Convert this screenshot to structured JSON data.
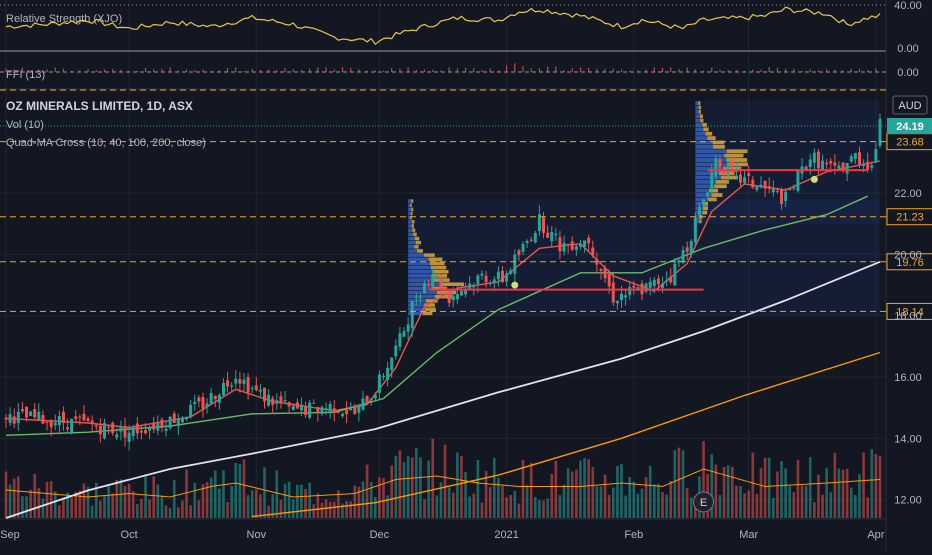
{
  "chart_data": {
    "type": "candlestick",
    "title": "OZ MINERALS LIMITED, 1D, ASX",
    "currency": "AUD",
    "legend_items": [
      "Vol (10)",
      "Quad-MA Cross (10, 40, 100, 200, close)"
    ],
    "x_ticks": [
      {
        "day": 0,
        "label": "Sep"
      },
      {
        "day": 30,
        "label": "Oct"
      },
      {
        "day": 61,
        "label": "Nov"
      },
      {
        "day": 91,
        "label": "Dec"
      },
      {
        "day": 122,
        "label": "2021"
      },
      {
        "day": 153,
        "label": "Feb"
      },
      {
        "day": 181,
        "label": "Mar"
      },
      {
        "day": 212,
        "label": "Apr"
      }
    ],
    "x_range_days": [
      0,
      213
    ],
    "y_ticks": [
      12.0,
      14.0,
      16.0,
      18.0,
      20.0,
      22.0
    ],
    "y_range": [
      11.4,
      25.3
    ],
    "price_levels": [
      {
        "value": 23.68,
        "label": "23.68"
      },
      {
        "value": 21.23,
        "label": "21.23"
      },
      {
        "value": 19.76,
        "label": "19.76"
      },
      {
        "value": 18.14,
        "label": "18.14"
      }
    ],
    "last_price": {
      "value": 24.19,
      "label": "24.19"
    },
    "support_lines": [
      {
        "from_day": 103,
        "to_day": 170,
        "value": 18.85
      },
      {
        "from_day": 171,
        "to_day": 210,
        "value": 22.75
      }
    ],
    "volume_profiles": [
      {
        "from_day": 98,
        "to_day": 213,
        "low": 18.0,
        "high": 21.8
      },
      {
        "from_day": 168,
        "to_day": 213,
        "low": 21.0,
        "high": 25.0
      }
    ],
    "ma_cross_dots": [
      {
        "day": 124,
        "value": 19.0
      },
      {
        "day": 197,
        "value": 22.45
      }
    ],
    "event_marker": {
      "day": 170,
      "label": "E"
    },
    "price_series": [
      {
        "day": 0,
        "close": 14.75
      },
      {
        "day": 10,
        "close": 14.6
      },
      {
        "day": 20,
        "close": 14.45
      },
      {
        "day": 30,
        "close": 14.2
      },
      {
        "day": 40,
        "close": 14.6
      },
      {
        "day": 48,
        "close": 15.1
      },
      {
        "day": 56,
        "close": 16.1
      },
      {
        "day": 61,
        "close": 15.5
      },
      {
        "day": 70,
        "close": 14.9
      },
      {
        "day": 80,
        "close": 15.05
      },
      {
        "day": 85,
        "close": 14.8
      },
      {
        "day": 90,
        "close": 15.6
      },
      {
        "day": 96,
        "close": 17.2
      },
      {
        "day": 100,
        "close": 18.7
      },
      {
        "day": 104,
        "close": 19.4
      },
      {
        "day": 108,
        "close": 18.6
      },
      {
        "day": 116,
        "close": 19.3
      },
      {
        "day": 121,
        "close": 19.2
      },
      {
        "day": 126,
        "close": 20.2
      },
      {
        "day": 130,
        "close": 21.1
      },
      {
        "day": 135,
        "close": 20.3
      },
      {
        "day": 142,
        "close": 20.5
      },
      {
        "day": 148,
        "close": 18.6
      },
      {
        "day": 156,
        "close": 18.9
      },
      {
        "day": 162,
        "close": 19.3
      },
      {
        "day": 166,
        "close": 20.3
      },
      {
        "day": 170,
        "close": 21.8
      },
      {
        "day": 173,
        "close": 23.1
      },
      {
        "day": 178,
        "close": 22.5
      },
      {
        "day": 184,
        "close": 22.2
      },
      {
        "day": 190,
        "close": 21.8
      },
      {
        "day": 196,
        "close": 23.2
      },
      {
        "day": 202,
        "close": 22.7
      },
      {
        "day": 207,
        "close": 23.2
      },
      {
        "day": 211,
        "close": 22.9
      },
      {
        "day": 213,
        "close": 24.19
      }
    ],
    "ma_lines": [
      {
        "name": "MA 10",
        "color": "#ef5350",
        "points": [
          [
            0,
            14.65
          ],
          [
            20,
            14.5
          ],
          [
            30,
            14.35
          ],
          [
            45,
            14.7
          ],
          [
            56,
            15.6
          ],
          [
            65,
            15.2
          ],
          [
            80,
            14.9
          ],
          [
            88,
            15.1
          ],
          [
            95,
            16.3
          ],
          [
            102,
            18.3
          ],
          [
            110,
            18.9
          ],
          [
            120,
            19.1
          ],
          [
            130,
            20.2
          ],
          [
            140,
            20.35
          ],
          [
            148,
            19.3
          ],
          [
            158,
            18.8
          ],
          [
            166,
            19.7
          ],
          [
            172,
            21.4
          ],
          [
            180,
            22.3
          ],
          [
            190,
            22.1
          ],
          [
            200,
            22.7
          ],
          [
            213,
            23.05
          ]
        ]
      },
      {
        "name": "MA 40",
        "color": "#66bb6a",
        "points": [
          [
            0,
            14.1
          ],
          [
            20,
            14.2
          ],
          [
            40,
            14.4
          ],
          [
            60,
            14.8
          ],
          [
            80,
            14.85
          ],
          [
            92,
            15.3
          ],
          [
            105,
            16.8
          ],
          [
            120,
            18.2
          ],
          [
            140,
            19.4
          ],
          [
            155,
            19.4
          ],
          [
            170,
            20.2
          ],
          [
            185,
            20.8
          ],
          [
            200,
            21.3
          ],
          [
            210,
            21.9
          ]
        ]
      },
      {
        "name": "MA 100",
        "color": "#e0e3eb",
        "points": [
          [
            0,
            11.4
          ],
          [
            20,
            12.3
          ],
          [
            40,
            13.0
          ],
          [
            60,
            13.5
          ],
          [
            90,
            14.3
          ],
          [
            120,
            15.5
          ],
          [
            150,
            16.6
          ],
          [
            170,
            17.5
          ],
          [
            190,
            18.5
          ],
          [
            213,
            19.76
          ]
        ]
      },
      {
        "name": "MA 200",
        "color": "#ff9800",
        "points": [
          [
            60,
            11.45
          ],
          [
            90,
            11.9
          ],
          [
            120,
            12.8
          ],
          [
            150,
            14.0
          ],
          [
            180,
            15.4
          ],
          [
            213,
            16.8
          ]
        ]
      }
    ],
    "volume_series": [
      {
        "day": 0,
        "volume": 0.4
      },
      {
        "day": 10,
        "volume": 0.35
      },
      {
        "day": 20,
        "volume": 0.3
      },
      {
        "day": 30,
        "volume": 0.35
      },
      {
        "day": 40,
        "volume": 0.3
      },
      {
        "day": 50,
        "volume": 0.45
      },
      {
        "day": 56,
        "volume": 0.5
      },
      {
        "day": 70,
        "volume": 0.3
      },
      {
        "day": 85,
        "volume": 0.35
      },
      {
        "day": 95,
        "volume": 0.55
      },
      {
        "day": 105,
        "volume": 0.6
      },
      {
        "day": 115,
        "volume": 0.5
      },
      {
        "day": 125,
        "volume": 0.45
      },
      {
        "day": 140,
        "volume": 0.45
      },
      {
        "day": 150,
        "volume": 0.5
      },
      {
        "day": 160,
        "volume": 0.45
      },
      {
        "day": 170,
        "volume": 0.7
      },
      {
        "day": 185,
        "volume": 0.45
      },
      {
        "day": 200,
        "volume": 0.5
      },
      {
        "day": 213,
        "volume": 0.55
      }
    ],
    "relative_strength": {
      "name": "Relative Strength (XJO)",
      "y_ticks": [
        {
          "value": 40.0,
          "label": "40.00"
        },
        {
          "value": 0.0,
          "label": "0.00"
        }
      ],
      "series": [
        [
          0,
          20
        ],
        [
          10,
          22
        ],
        [
          20,
          26
        ],
        [
          30,
          18
        ],
        [
          40,
          24
        ],
        [
          50,
          20
        ],
        [
          60,
          28
        ],
        [
          70,
          22
        ],
        [
          80,
          10
        ],
        [
          90,
          6
        ],
        [
          100,
          18
        ],
        [
          110,
          28
        ],
        [
          120,
          26
        ],
        [
          125,
          34
        ],
        [
          130,
          36
        ],
        [
          140,
          30
        ],
        [
          150,
          20
        ],
        [
          155,
          26
        ],
        [
          160,
          22
        ],
        [
          165,
          18
        ],
        [
          170,
          26
        ],
        [
          180,
          28
        ],
        [
          185,
          30
        ],
        [
          190,
          36
        ],
        [
          200,
          32
        ],
        [
          205,
          22
        ],
        [
          210,
          28
        ],
        [
          213,
          30
        ]
      ]
    },
    "ffi": {
      "name": "FFI (13)",
      "y_ticks": [
        {
          "value": 0.0,
          "label": "0.00"
        }
      ]
    }
  }
}
